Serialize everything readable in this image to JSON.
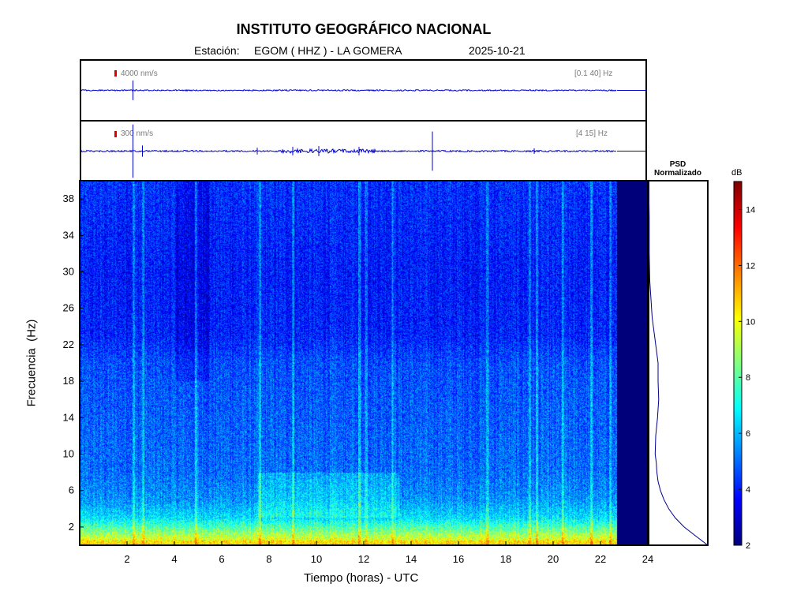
{
  "header": {
    "title": "INSTITUTO GEOGRÁFICO NACIONAL",
    "station_label": "Estación:",
    "station": "EGOM ( HHZ ) - LA GOMERA",
    "date": "2025-10-21"
  },
  "traces": [
    {
      "scale_label": "4000 nm/s",
      "band_label": "[0.1 40] Hz"
    },
    {
      "scale_label": "300 nm/s",
      "band_label": "[4 15] Hz"
    }
  ],
  "psd": {
    "title_line1": "PSD",
    "title_line2": "Normalizado"
  },
  "colorbar": {
    "unit": "dB",
    "ticks": [
      "14",
      "12",
      "10",
      "8",
      "6",
      "4",
      "2"
    ]
  },
  "colors": {
    "trace": "#0000cc",
    "scale_marker": "#e00000",
    "no_data": "#00007a",
    "psd_line": "#00008b"
  },
  "chart_data": [
    {
      "type": "line",
      "name": "waveform-broadband",
      "xlim": [
        0,
        24
      ],
      "data_end_hour": 22.7,
      "events": [
        {
          "x": 2.25,
          "amplitude": 0.35
        }
      ]
    },
    {
      "type": "line",
      "name": "waveform-filtered",
      "xlim": [
        0,
        24
      ],
      "data_end_hour": 22.7,
      "events": [
        {
          "x": 2.25,
          "amplitude": 0.95
        },
        {
          "x": 2.65,
          "amplitude": 0.2
        },
        {
          "x": 7.5,
          "amplitude": 0.12
        },
        {
          "x": 9.0,
          "amplitude": 0.15
        },
        {
          "x": 10.1,
          "amplitude": 0.18
        },
        {
          "x": 11.8,
          "amplitude": 0.15
        },
        {
          "x": 14.9,
          "amplitude": 0.7
        },
        {
          "x": 19.2,
          "amplitude": 0.1
        }
      ]
    },
    {
      "type": "heatmap",
      "xlabel": "Tiempo (horas) - UTC",
      "ylabel": "Frecuencia  (Hz)",
      "xlim": [
        0,
        24
      ],
      "ylim": [
        0,
        40
      ],
      "xticks": [
        2,
        4,
        6,
        8,
        10,
        12,
        14,
        16,
        18,
        20,
        22,
        24
      ],
      "yticks": [
        2,
        6,
        10,
        14,
        18,
        22,
        26,
        30,
        34,
        38
      ],
      "colorbar_range_db": [
        2,
        15
      ],
      "data_end_hour": 22.7,
      "level_profile_db": [
        {
          "hz": 0.5,
          "db": 10
        },
        {
          "hz": 1.5,
          "db": 8.5
        },
        {
          "hz": 3,
          "db": 6.5
        },
        {
          "hz": 5,
          "db": 5.5
        },
        {
          "hz": 8,
          "db": 5
        },
        {
          "hz": 14,
          "db": 4.8
        },
        {
          "hz": 20,
          "db": 4.6
        },
        {
          "hz": 23,
          "db": 4.0
        },
        {
          "hz": 30,
          "db": 3.9
        },
        {
          "hz": 40,
          "db": 4.2
        }
      ],
      "vertical_streaks_hours": [
        2.25,
        2.65,
        4.9,
        7.6,
        9.0,
        11.8,
        12.1,
        13.2,
        17.2,
        19.0,
        19.3,
        20.4,
        21.6,
        22.4
      ]
    },
    {
      "type": "line",
      "title": "PSD Normalizado",
      "ylim": [
        0,
        40
      ],
      "xlim": [
        0,
        1
      ],
      "x": [
        0.0,
        0.01,
        0.01,
        0.02,
        0.06,
        0.12,
        0.16,
        0.16,
        0.17,
        0.15,
        0.12,
        0.11,
        0.13,
        0.14,
        0.16,
        0.2,
        0.26,
        0.34,
        0.45,
        0.6,
        0.8,
        1.0
      ],
      "y": [
        40,
        36,
        32,
        29,
        25,
        22,
        20,
        18,
        16,
        14,
        12,
        10,
        9,
        8,
        7,
        6,
        5,
        4,
        3,
        2,
        1,
        0
      ]
    }
  ]
}
